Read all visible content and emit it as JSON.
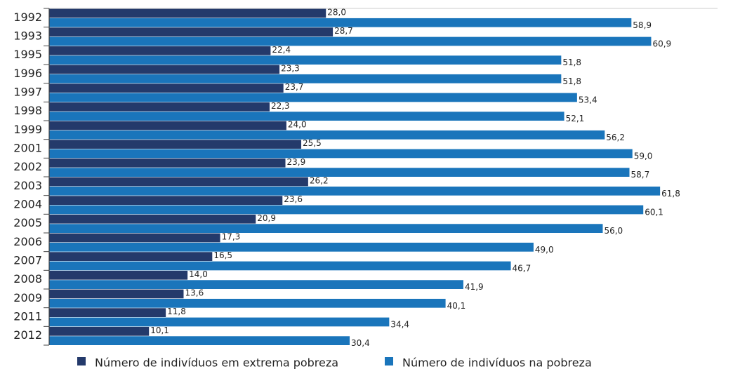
{
  "chart_data": {
    "type": "bar",
    "orientation": "horizontal",
    "categories": [
      "1992",
      "1993",
      "1995",
      "1996",
      "1997",
      "1998",
      "1999",
      "2001",
      "2002",
      "2003",
      "2004",
      "2005",
      "2006",
      "2007",
      "2008",
      "2009",
      "2011",
      "2012"
    ],
    "series": [
      {
        "name": "Número de indivíduos em extrema pobreza",
        "color": "#243a6b",
        "values": [
          28.0,
          28.7,
          22.4,
          23.3,
          23.7,
          22.3,
          24.0,
          25.5,
          23.9,
          26.2,
          23.6,
          20.9,
          17.3,
          16.5,
          14.0,
          13.6,
          11.8,
          10.1
        ],
        "value_labels": [
          "28,0",
          "28,7",
          "22,4",
          "23,3",
          "23,7",
          "22,3",
          "24,0",
          "25,5",
          "23,9",
          "26,2",
          "23,6",
          "20,9",
          "17,3",
          "16,5",
          "14,0",
          "13,6",
          "11,8",
          "10,1"
        ]
      },
      {
        "name": "Número de indivíduos na pobreza",
        "color": "#1a75bb",
        "values": [
          58.9,
          60.9,
          51.8,
          51.8,
          53.4,
          52.1,
          56.2,
          59.0,
          58.7,
          61.8,
          60.1,
          56.0,
          49.0,
          46.7,
          41.9,
          40.1,
          34.4,
          30.4
        ],
        "value_labels": [
          "58,9",
          "60,9",
          "51,8",
          "51,8",
          "53,4",
          "52,1",
          "56,2",
          "59,0",
          "58,7",
          "61,8",
          "60,1",
          "56,0",
          "49,0",
          "46,7",
          "41,9",
          "40,1",
          "34,4",
          "30,4"
        ]
      }
    ]
  }
}
